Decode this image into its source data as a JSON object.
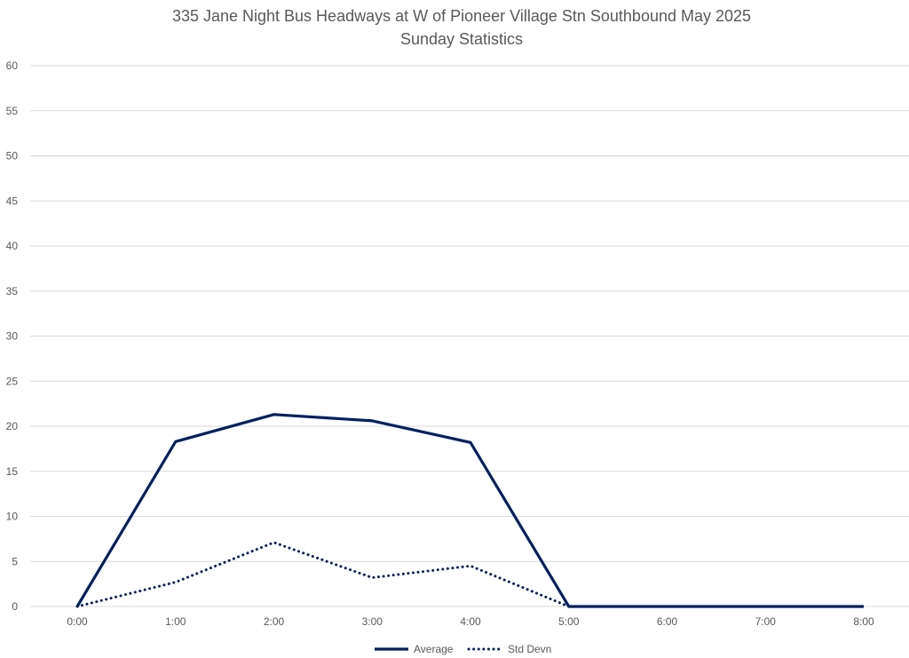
{
  "chart_data": {
    "type": "line",
    "title": "335 Jane Night Bus Headways at W of Pioneer Village Stn Southbound May 2025",
    "subtitle": "Sunday Statistics",
    "xlabel": "",
    "ylabel": "",
    "categories": [
      "0:00",
      "1:00",
      "2:00",
      "3:00",
      "4:00",
      "5:00",
      "6:00",
      "7:00",
      "8:00"
    ],
    "ylim": [
      0,
      60
    ],
    "yticks": [
      0,
      5,
      10,
      15,
      20,
      25,
      30,
      35,
      40,
      45,
      50,
      55,
      60
    ],
    "grid": true,
    "legend_position": "bottom",
    "series": [
      {
        "name": "Average",
        "values": [
          0,
          18.3,
          21.3,
          20.6,
          18.2,
          0,
          0,
          0,
          0
        ],
        "color": "#002060",
        "style": "solid"
      },
      {
        "name": "Std Devn",
        "values": [
          0,
          2.7,
          7.1,
          3.2,
          4.5,
          0,
          null,
          null,
          null
        ],
        "color": "#002060",
        "style": "dotted"
      }
    ]
  }
}
